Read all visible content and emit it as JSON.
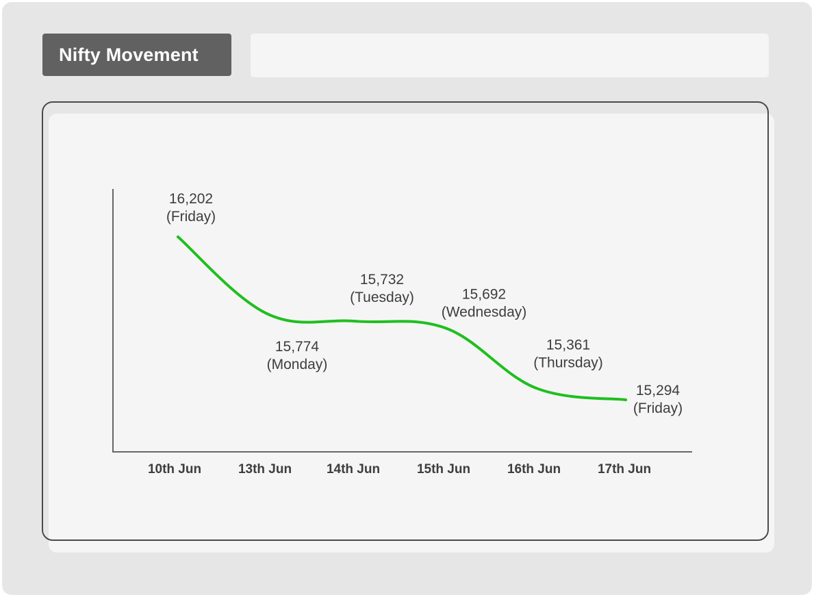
{
  "header": {
    "title": "Nifty Movement",
    "bar_text": ""
  },
  "colors": {
    "line": "#1fbf1f",
    "title_bg": "#616161",
    "panel_bg": "#f5f5f5",
    "frame_bg": "#e6e6e6"
  },
  "chart_data": {
    "type": "line",
    "title": "",
    "xlabel": "",
    "ylabel": "",
    "grid": false,
    "categories": [
      "10th Jun",
      "13th Jun",
      "14th Jun",
      "15th Jun",
      "16th Jun",
      "17th Jun"
    ],
    "series": [
      {
        "values": [
          16202,
          15774,
          15732,
          15692,
          15361,
          15294
        ],
        "value_labels": [
          "16,202",
          "15,774",
          "15,732",
          "15,692",
          "15,361",
          "15,294"
        ],
        "day_labels": [
          "(Friday)",
          "(Monday)",
          "(Tuesday)",
          "(Wednesday)",
          "(Thursday)",
          "(Friday)"
        ]
      }
    ]
  }
}
